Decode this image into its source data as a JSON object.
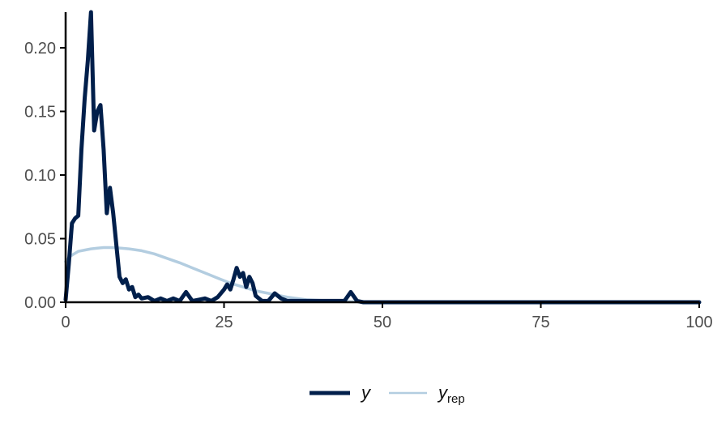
{
  "chart_data": {
    "type": "line",
    "title": "",
    "xlabel": "",
    "ylabel": "",
    "xlim": [
      0,
      100
    ],
    "ylim": [
      0,
      0.228
    ],
    "x_ticks": [
      0,
      25,
      50,
      75,
      100
    ],
    "x_tick_labels": [
      "0",
      "25",
      "50",
      "75",
      "100"
    ],
    "y_ticks": [
      0,
      0.05,
      0.1,
      0.15,
      0.2
    ],
    "y_tick_labels": [
      "0.00",
      "0.05",
      "0.10",
      "0.15",
      "0.20"
    ],
    "grid": false,
    "legend_position": "bottom",
    "legend": [
      {
        "main": "y",
        "sub": "",
        "color": "#011f4b",
        "role": "observed"
      },
      {
        "main": "y",
        "sub": "rep",
        "color": "#b3cde0",
        "role": "replicated"
      }
    ],
    "series": [
      {
        "name": "y",
        "color": "#011f4b",
        "x": [
          0,
          0.5,
          1,
          1.5,
          2,
          2.5,
          3,
          3.5,
          4,
          4.5,
          5,
          5.5,
          6,
          6.5,
          7,
          7.5,
          8,
          8.5,
          9,
          9.5,
          10,
          10.5,
          11,
          11.5,
          12,
          13,
          14,
          15,
          16,
          17,
          18,
          19,
          20,
          21,
          22,
          23,
          24,
          25,
          25.5,
          26,
          26.5,
          27,
          27.5,
          28,
          28.5,
          29,
          29.5,
          30,
          31,
          32,
          33,
          34,
          35,
          40,
          44,
          45,
          46,
          47,
          50,
          60,
          75,
          100
        ],
        "y": [
          0.002,
          0.03,
          0.062,
          0.066,
          0.068,
          0.12,
          0.16,
          0.19,
          0.228,
          0.135,
          0.15,
          0.155,
          0.12,
          0.07,
          0.09,
          0.07,
          0.045,
          0.02,
          0.015,
          0.018,
          0.01,
          0.012,
          0.004,
          0.006,
          0.003,
          0.004,
          0.001,
          0.003,
          0.001,
          0.003,
          0.001,
          0.008,
          0.001,
          0.002,
          0.003,
          0.001,
          0.004,
          0.01,
          0.014,
          0.01,
          0.018,
          0.027,
          0.02,
          0.023,
          0.012,
          0.02,
          0.015,
          0.005,
          0.001,
          0.001,
          0.007,
          0.003,
          0.001,
          0.001,
          0.001,
          0.008,
          0.001,
          0.0,
          0.0,
          0.0,
          0.0,
          0.0
        ]
      },
      {
        "name": "y_rep",
        "color": "#b3cde0",
        "x": [
          0,
          0.5,
          1,
          2,
          3,
          4,
          5,
          6,
          7,
          8,
          10,
          12,
          14,
          16,
          18,
          20,
          22,
          24,
          26,
          28,
          30,
          32,
          35,
          38,
          40,
          45,
          50,
          55,
          60,
          70,
          80,
          100
        ],
        "y": [
          0.032,
          0.035,
          0.037,
          0.04,
          0.041,
          0.042,
          0.0425,
          0.043,
          0.043,
          0.0428,
          0.042,
          0.0405,
          0.038,
          0.0345,
          0.031,
          0.027,
          0.023,
          0.019,
          0.015,
          0.012,
          0.009,
          0.007,
          0.004,
          0.002,
          0.0015,
          0.0005,
          0.0002,
          0.0001,
          0.0,
          0.0,
          0.0,
          0.0
        ]
      }
    ]
  }
}
